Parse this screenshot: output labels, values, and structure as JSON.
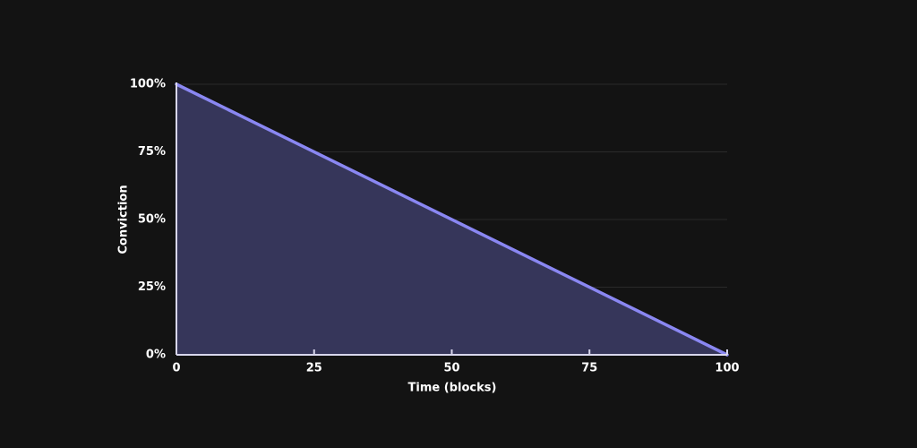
{
  "chart_data": {
    "type": "area",
    "x": [
      0,
      100
    ],
    "values": [
      100,
      0
    ],
    "color": "#8a87f2",
    "fill_color": "#36365a",
    "xlabel": "Time (blocks)",
    "ylabel": "Conviction",
    "xlim": [
      0,
      100
    ],
    "xticks": [
      0,
      25,
      50,
      75,
      100
    ],
    "ylim": [
      0,
      100
    ],
    "yticks": [
      {
        "value": 0,
        "label": "0%"
      },
      {
        "value": 25,
        "label": "25%"
      },
      {
        "value": 50,
        "label": "50%"
      },
      {
        "value": 75,
        "label": "75%"
      },
      {
        "value": 100,
        "label": "100%"
      }
    ],
    "grid": true
  }
}
